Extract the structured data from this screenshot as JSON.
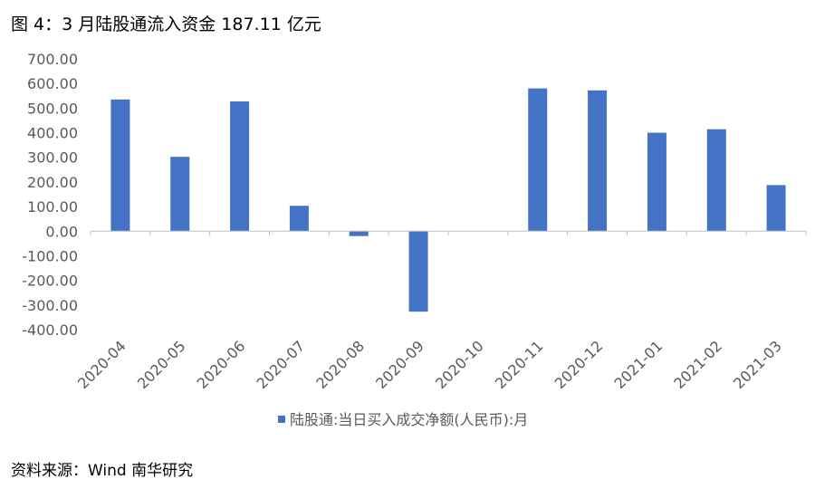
{
  "title": "图 4：3 月陆股通流入资金 187.11 亿元",
  "source": "资料来源：Wind  南华研究",
  "colors": {
    "bar": "#4472C4",
    "axis": "#BFBFBF",
    "text": "#595959"
  },
  "chart_data": {
    "type": "bar",
    "categories": [
      "2020-04",
      "2020-05",
      "2020-06",
      "2020-07",
      "2020-08",
      "2020-09",
      "2020-10",
      "2020-11",
      "2020-12",
      "2021-01",
      "2021-02",
      "2021-03"
    ],
    "series": [
      {
        "name": "陆股通:当日买入成交净额(人民币):月",
        "values": [
          535,
          302,
          527,
          103,
          -20,
          -327,
          0,
          580,
          572,
          400,
          414,
          187.11
        ]
      }
    ],
    "ylim": [
      -400,
      700
    ],
    "yticks": [
      700,
      600,
      500,
      400,
      300,
      200,
      100,
      0,
      -100,
      -200,
      -300,
      -400
    ],
    "ytick_labels": [
      "700.00",
      "600.00",
      "500.00",
      "400.00",
      "300.00",
      "200.00",
      "100.00",
      "0.00",
      "-100.00",
      "-200.00",
      "-300.00",
      "-400.00"
    ],
    "grid": false,
    "legend_position": "bottom"
  }
}
